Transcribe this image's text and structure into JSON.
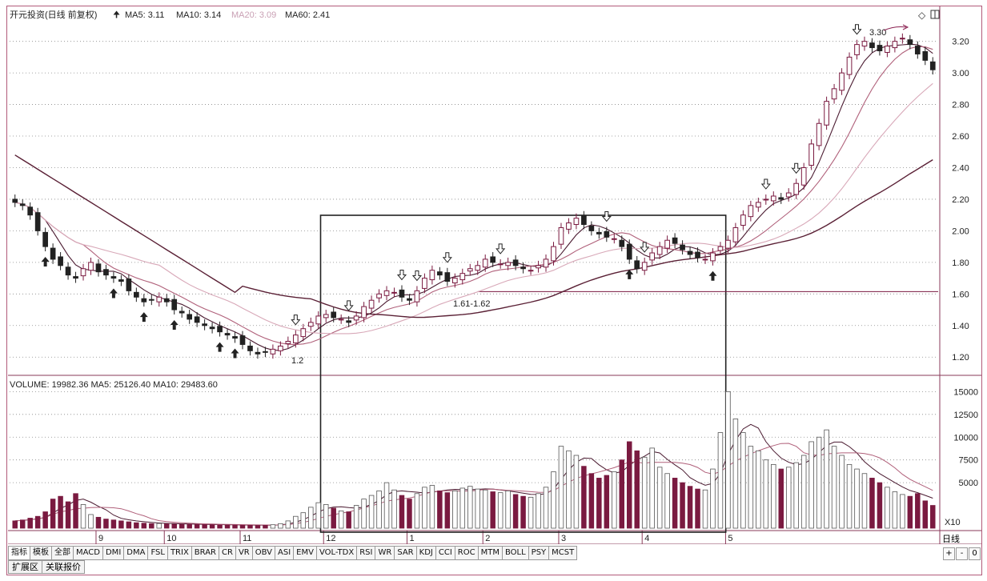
{
  "header": {
    "title": "开元投资(日线 前复权)",
    "ma_labels": [
      {
        "text": "MA5: 3.11",
        "color": "#222222"
      },
      {
        "text": "MA10: 3.14",
        "color": "#222222"
      },
      {
        "text": "MA20: 3.09",
        "color": "#c9a0b4"
      },
      {
        "text": "MA60: 2.41",
        "color": "#222222"
      }
    ]
  },
  "volume_header": {
    "text": "VOLUME: 19982.36  MA5: 25126.40  MA10: 29483.60"
  },
  "annotations": {
    "range_label": "1.61-1.62",
    "low_label": "1.2",
    "high_label": "3.30"
  },
  "chart_data": {
    "type": "candlestick",
    "price_axis": {
      "ticks": [
        "3.20",
        "3.00",
        "2.80",
        "2.60",
        "2.40",
        "2.20",
        "2.00",
        "1.80",
        "1.60",
        "1.40",
        "1.20"
      ],
      "ylim": [
        1.12,
        3.32
      ]
    },
    "volume_axis": {
      "ticks": [
        "15000",
        "12500",
        "10000",
        "7500",
        "5000"
      ],
      "ylim": [
        0,
        16000
      ],
      "unit_label": "X10"
    },
    "month_labels": [
      "9",
      "10",
      "11",
      "12",
      "1",
      "2",
      "3",
      "4",
      "5"
    ],
    "period_label": "日线",
    "close": [
      2.18,
      2.16,
      2.1,
      2.0,
      1.9,
      1.82,
      1.78,
      1.72,
      1.7,
      1.76,
      1.8,
      1.74,
      1.72,
      1.7,
      1.68,
      1.62,
      1.58,
      1.55,
      1.56,
      1.58,
      1.55,
      1.5,
      1.48,
      1.44,
      1.42,
      1.4,
      1.38,
      1.36,
      1.34,
      1.32,
      1.28,
      1.24,
      1.22,
      1.23,
      1.25,
      1.27,
      1.3,
      1.34,
      1.38,
      1.42,
      1.46,
      1.47,
      1.45,
      1.44,
      1.42,
      1.46,
      1.52,
      1.56,
      1.6,
      1.62,
      1.61,
      1.58,
      1.56,
      1.62,
      1.7,
      1.75,
      1.72,
      1.68,
      1.7,
      1.73,
      1.76,
      1.78,
      1.82,
      1.8,
      1.79,
      1.8,
      1.78,
      1.76,
      1.75,
      1.78,
      1.82,
      1.9,
      2.02,
      2.05,
      2.08,
      2.04,
      2.0,
      1.98,
      1.96,
      1.95,
      1.9,
      1.82,
      1.76,
      1.8,
      1.86,
      1.9,
      1.94,
      1.92,
      1.88,
      1.85,
      1.83,
      1.82,
      1.86,
      1.9,
      1.94,
      2.02,
      2.1,
      2.16,
      2.18,
      2.2,
      2.22,
      2.2,
      2.24,
      2.3,
      2.4,
      2.55,
      2.68,
      2.82,
      2.9,
      3.0,
      3.1,
      3.18,
      3.2,
      3.16,
      3.14,
      3.17,
      3.2,
      3.22,
      3.18,
      3.12,
      3.08,
      3.02
    ],
    "volume": [
      800,
      900,
      1100,
      1300,
      1800,
      3200,
      3500,
      2900,
      3800,
      2600,
      1500,
      1200,
      1000,
      900,
      800,
      700,
      600,
      550,
      500,
      520,
      480,
      450,
      430,
      420,
      400,
      400,
      380,
      360,
      350,
      340,
      330,
      320,
      300,
      320,
      380,
      500,
      800,
      1300,
      1700,
      2300,
      2800,
      2600,
      2200,
      1900,
      1800,
      2500,
      3200,
      3600,
      4100,
      5000,
      4200,
      3600,
      3200,
      3800,
      4500,
      4700,
      4100,
      3900,
      4100,
      4400,
      4600,
      4300,
      4200,
      4000,
      3900,
      4100,
      3700,
      3500,
      3400,
      3800,
      4500,
      6200,
      9000,
      8500,
      8000,
      6800,
      6000,
      5500,
      5800,
      6200,
      7500,
      9500,
      8500,
      7800,
      8800,
      6700,
      6000,
      5500,
      5000,
      4600,
      4300,
      4200,
      6500,
      10500,
      15000,
      12000,
      10500,
      9000,
      8500,
      7500,
      7000,
      6500,
      6700,
      7200,
      8000,
      9500,
      10000,
      10800,
      9000,
      8000,
      7000,
      6500,
      6000,
      5500,
      5000,
      4500,
      4000,
      3700,
      3500,
      3800,
      3000,
      2500
    ],
    "arrows_up": [
      4,
      13,
      17,
      21,
      27,
      29,
      81,
      92
    ],
    "arrows_down": [
      37,
      44,
      51,
      53,
      57,
      64,
      78,
      83,
      99,
      103,
      111,
      126
    ],
    "range_box_index": [
      41,
      93
    ]
  },
  "tabs": [
    "指标",
    "模板",
    "全部",
    "MACD",
    "DMI",
    "DMA",
    "FSL",
    "TRIX",
    "BRAR",
    "CR",
    "VR",
    "OBV",
    "ASI",
    "EMV",
    "VOL-TDX",
    "RSI",
    "WR",
    "SAR",
    "KDJ",
    "CCI",
    "ROC",
    "MTM",
    "BOLL",
    "PSY",
    "MCST"
  ],
  "extra_tabs": [
    "扩展区",
    "关联报价"
  ],
  "zoom_buttons": [
    "+",
    "-",
    "0"
  ]
}
